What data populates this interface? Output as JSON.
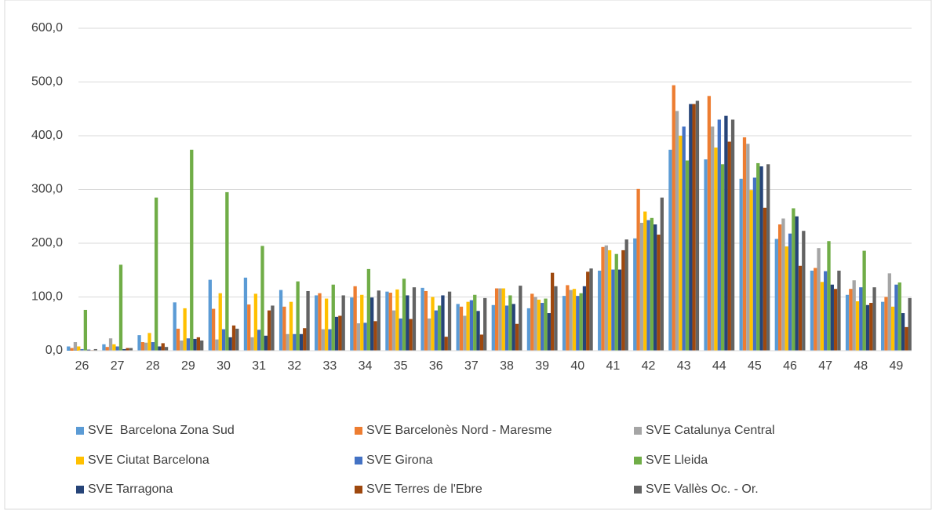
{
  "chart_data": {
    "type": "bar",
    "categories": [
      "26",
      "27",
      "28",
      "29",
      "30",
      "31",
      "32",
      "33",
      "34",
      "35",
      "36",
      "37",
      "38",
      "39",
      "40",
      "41",
      "42",
      "43",
      "44",
      "45",
      "46",
      "47",
      "48",
      "49"
    ],
    "ylim": [
      0,
      600
    ],
    "yticks": [
      {
        "value": 0,
        "label": "0,0"
      },
      {
        "value": 100,
        "label": "100,0"
      },
      {
        "value": 200,
        "label": "200,0"
      },
      {
        "value": 300,
        "label": "300,0"
      },
      {
        "value": 400,
        "label": "400,0"
      },
      {
        "value": 500,
        "label": "500,0"
      },
      {
        "value": 600,
        "label": "600,0"
      }
    ],
    "grid": true,
    "legend": "bottom",
    "series": [
      {
        "name": "SVE  Barcelona Zona Sud",
        "color": "#5b9bd5",
        "values": [
          8,
          12,
          29,
          90,
          132,
          136,
          113,
          103,
          99,
          110,
          117,
          87,
          85,
          79,
          102,
          149,
          209,
          374,
          356,
          320,
          208,
          149,
          104,
          91
        ]
      },
      {
        "name": "SVE Barcelonès Nord - Maresme",
        "color": "#ed7d31",
        "values": [
          5,
          7,
          16,
          41,
          78,
          86,
          82,
          107,
          120,
          108,
          111,
          82,
          116,
          106,
          122,
          193,
          301,
          494,
          474,
          397,
          235,
          154,
          115,
          100
        ]
      },
      {
        "name": "SVE Catalunya Central",
        "color": "#a5a5a5",
        "values": [
          16,
          23,
          15,
          19,
          21,
          25,
          31,
          40,
          51,
          75,
          60,
          65,
          116,
          100,
          113,
          196,
          238,
          446,
          417,
          385,
          246,
          191,
          131,
          144
        ]
      },
      {
        "name": "SVE Ciutat Barcelona",
        "color": "#ffc000",
        "values": [
          8,
          12,
          33,
          79,
          107,
          106,
          91,
          97,
          104,
          114,
          100,
          91,
          116,
          95,
          115,
          187,
          259,
          400,
          378,
          299,
          194,
          128,
          92,
          82
        ]
      },
      {
        "name": "SVE Girona",
        "color": "#4472c4",
        "values": [
          3,
          8,
          16,
          23,
          40,
          39,
          31,
          40,
          52,
          60,
          75,
          94,
          84,
          89,
          102,
          151,
          243,
          417,
          430,
          322,
          218,
          148,
          118,
          123
        ]
      },
      {
        "name": "SVE Lleida",
        "color": "#70ad47",
        "values": [
          76,
          160,
          285,
          374,
          295,
          195,
          129,
          123,
          152,
          134,
          84,
          104,
          103,
          97,
          107,
          180,
          247,
          354,
          347,
          349,
          265,
          204,
          186,
          127
        ]
      },
      {
        "name": "SVE Tarragona",
        "color": "#264478",
        "values": [
          2,
          3,
          8,
          22,
          25,
          28,
          31,
          63,
          99,
          103,
          103,
          74,
          87,
          70,
          120,
          151,
          235,
          459,
          437,
          343,
          250,
          123,
          85,
          70
        ]
      },
      {
        "name": "SVE Terres de l'Ebre",
        "color": "#9e480e",
        "values": [
          1,
          5,
          14,
          25,
          47,
          75,
          42,
          65,
          55,
          59,
          26,
          30,
          50,
          145,
          147,
          187,
          216,
          459,
          389,
          266,
          158,
          115,
          89,
          44
        ]
      },
      {
        "name": "SVE Vallès Oc. - Or.",
        "color": "#636363",
        "values": [
          3,
          5,
          7,
          19,
          41,
          84,
          111,
          103,
          112,
          118,
          110,
          98,
          121,
          120,
          153,
          207,
          285,
          465,
          430,
          347,
          223,
          149,
          118,
          98
        ]
      }
    ]
  }
}
